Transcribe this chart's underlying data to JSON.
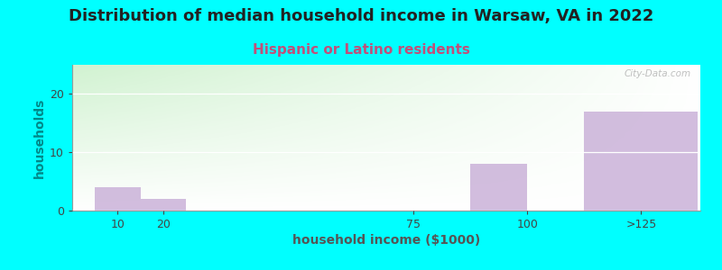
{
  "title": "Distribution of median household income in Warsaw, VA in 2022",
  "subtitle": "Hispanic or Latino residents",
  "xlabel": "household income ($1000)",
  "ylabel": "households",
  "tick_positions": [
    10,
    20,
    75,
    100,
    125
  ],
  "tick_labels": [
    "10",
    "20",
    "75",
    "100",
    ">125"
  ],
  "bar_lefts": [
    5,
    15,
    55,
    87.5,
    112.5
  ],
  "bar_widths": [
    10,
    10,
    30,
    12.5,
    25
  ],
  "values": [
    4,
    2,
    0,
    8,
    17
  ],
  "bar_color": "#C4A8D4",
  "bar_alpha": 0.75,
  "background_color": "#00FFFF",
  "title_fontsize": 13,
  "subtitle_fontsize": 11,
  "subtitle_color": "#C0507A",
  "ylabel_color": "#008888",
  "xlabel_color": "#555555",
  "yticks": [
    0,
    10,
    20
  ],
  "ylim": [
    0,
    25
  ],
  "xlim": [
    0,
    138
  ],
  "watermark": "City-Data.com"
}
